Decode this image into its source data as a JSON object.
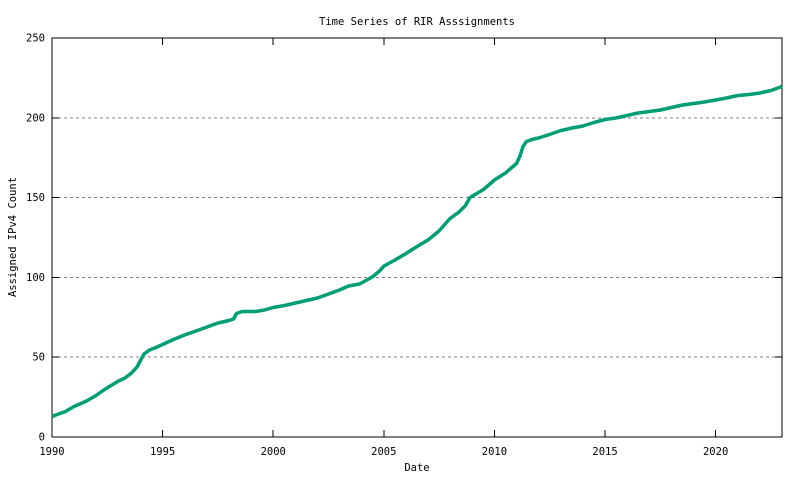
{
  "chart_data": {
    "type": "line",
    "title": "Time Series of RIR Asssignments",
    "xlabel": "Date",
    "ylabel": "Assigned IPv4 Count",
    "xlim": [
      1990,
      2023
    ],
    "ylim": [
      0,
      250
    ],
    "x_ticks": [
      1990,
      1995,
      2000,
      2005,
      2010,
      2015,
      2020
    ],
    "y_ticks": [
      0,
      50,
      100,
      150,
      200,
      250
    ],
    "grid": "horizontal-dashed",
    "grid_color": "#808080",
    "axis_color": "#000000",
    "background_color": "#ffffff",
    "legend": "none",
    "series": [
      {
        "name": "Assigned IPv4 Count",
        "color": "#009E73",
        "points": [
          [
            1990.0,
            13
          ],
          [
            1990.3,
            14.5
          ],
          [
            1990.6,
            16
          ],
          [
            1991.0,
            19
          ],
          [
            1991.3,
            21
          ],
          [
            1991.6,
            23
          ],
          [
            1992.0,
            26
          ],
          [
            1992.3,
            29
          ],
          [
            1992.6,
            31.5
          ],
          [
            1993.0,
            35
          ],
          [
            1993.3,
            37
          ],
          [
            1993.6,
            40
          ],
          [
            1993.85,
            44
          ],
          [
            1994.0,
            48
          ],
          [
            1994.15,
            52
          ],
          [
            1994.4,
            54.5
          ],
          [
            1994.7,
            56
          ],
          [
            1995.0,
            58
          ],
          [
            1995.5,
            61
          ],
          [
            1996.0,
            64
          ],
          [
            1996.5,
            66.5
          ],
          [
            1997.0,
            69
          ],
          [
            1997.5,
            71.5
          ],
          [
            1998.0,
            73
          ],
          [
            1998.2,
            74
          ],
          [
            1998.35,
            77.5
          ],
          [
            1998.6,
            78.5
          ],
          [
            1999.2,
            78.5
          ],
          [
            1999.6,
            79.5
          ],
          [
            2000.0,
            81
          ],
          [
            2000.5,
            82.5
          ],
          [
            2001.0,
            84
          ],
          [
            2001.5,
            85.5
          ],
          [
            2002.0,
            87
          ],
          [
            2002.5,
            89.5
          ],
          [
            2003.0,
            92
          ],
          [
            2003.4,
            94.5
          ],
          [
            2003.9,
            96
          ],
          [
            2004.2,
            98
          ],
          [
            2004.5,
            100.5
          ],
          [
            2004.8,
            104
          ],
          [
            2005.0,
            107
          ],
          [
            2005.5,
            111
          ],
          [
            2006.0,
            115
          ],
          [
            2006.5,
            119.5
          ],
          [
            2007.0,
            123.5
          ],
          [
            2007.5,
            129
          ],
          [
            2008.0,
            137
          ],
          [
            2008.4,
            141
          ],
          [
            2008.7,
            145
          ],
          [
            2008.9,
            150
          ],
          [
            2009.0,
            151
          ],
          [
            2009.5,
            155
          ],
          [
            2010.0,
            161
          ],
          [
            2010.5,
            165.5
          ],
          [
            2011.0,
            171.5
          ],
          [
            2011.15,
            176
          ],
          [
            2011.3,
            182
          ],
          [
            2011.45,
            185
          ],
          [
            2011.7,
            186.5
          ],
          [
            2012.0,
            187.5
          ],
          [
            2012.5,
            189.5
          ],
          [
            2013.0,
            192
          ],
          [
            2013.5,
            193.5
          ],
          [
            2014.0,
            195
          ],
          [
            2014.5,
            197
          ],
          [
            2015.0,
            199
          ],
          [
            2015.5,
            200
          ],
          [
            2016.0,
            201.5
          ],
          [
            2016.5,
            203
          ],
          [
            2017.0,
            204
          ],
          [
            2017.5,
            205
          ],
          [
            2018.0,
            206.5
          ],
          [
            2018.5,
            208
          ],
          [
            2019.0,
            209
          ],
          [
            2019.5,
            210
          ],
          [
            2020.0,
            211
          ],
          [
            2020.5,
            212.5
          ],
          [
            2021.0,
            214
          ],
          [
            2021.5,
            214.5
          ],
          [
            2022.0,
            215.5
          ],
          [
            2022.5,
            217
          ],
          [
            2023.0,
            219.5
          ]
        ]
      }
    ]
  }
}
